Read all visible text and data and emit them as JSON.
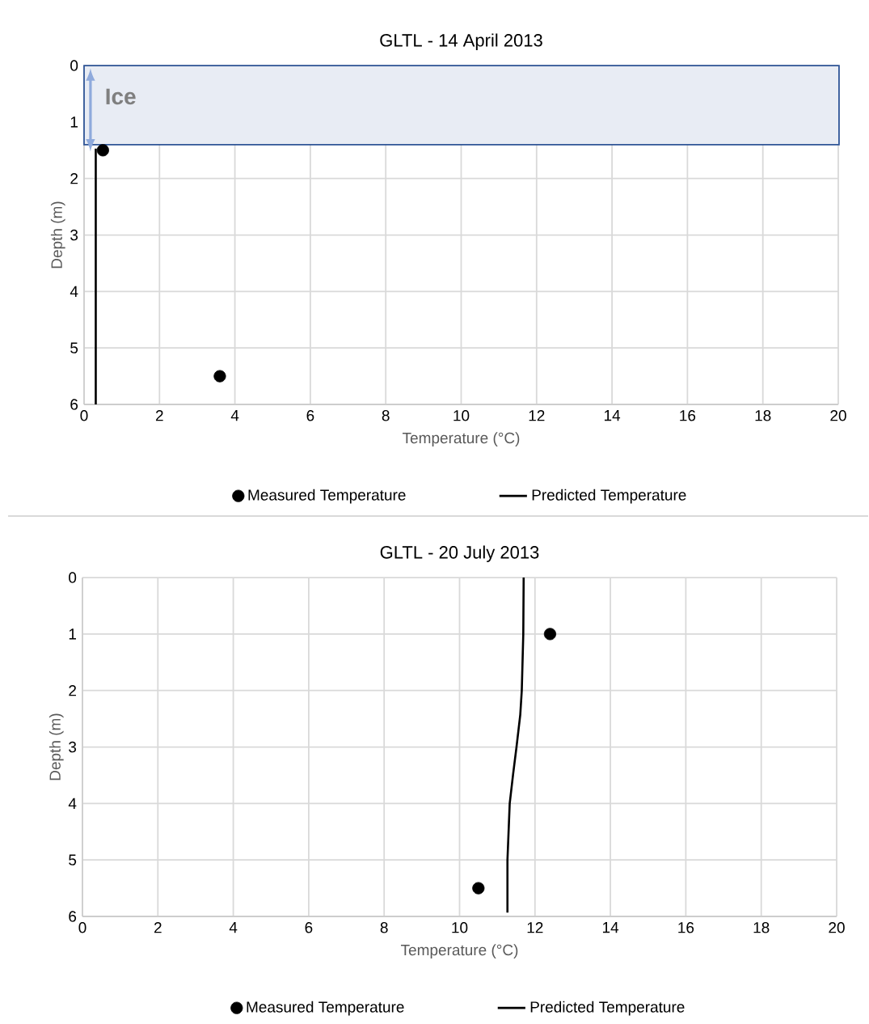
{
  "chart_data": [
    {
      "type": "scatter",
      "title": "GLTL - 14 April 2013",
      "xlabel": "Temperature (°C)",
      "ylabel": "Depth (m)",
      "xlim": [
        0,
        20
      ],
      "xticks": [
        0,
        2,
        4,
        6,
        8,
        10,
        12,
        14,
        16,
        18,
        20
      ],
      "ylim": [
        6,
        0
      ],
      "yticks": [
        0,
        1,
        2,
        3,
        4,
        5,
        6
      ],
      "grid": true,
      "legend": "bottom",
      "bands": [
        {
          "axis": "y",
          "from": 0,
          "to": 1.4,
          "label": "Ice",
          "color": "#2f5597"
        }
      ],
      "series": [
        {
          "name": "Measured Temperature",
          "color": "#000000",
          "marker": "circle",
          "x": [
            0.5,
            3.6
          ],
          "values": [
            1.5,
            5.5
          ]
        },
        {
          "name": "Predicted Temperature",
          "type": "line",
          "color": "#000000",
          "marker": "none",
          "line_style": "solid",
          "x": [
            0.31,
            0.31
          ],
          "values": [
            1.47,
            6
          ]
        }
      ]
    },
    {
      "type": "scatter",
      "title": "GLTL - 20 July 2013",
      "xlabel": "Temperature (°C)",
      "ylabel": "Depth (m)",
      "xlim": [
        0,
        20
      ],
      "xticks": [
        0,
        2,
        4,
        6,
        8,
        10,
        12,
        14,
        16,
        18,
        20
      ],
      "ylim": [
        6,
        0
      ],
      "yticks": [
        0,
        1,
        2,
        3,
        4,
        5,
        6
      ],
      "grid": true,
      "legend": "bottom",
      "series": [
        {
          "name": "Measured Temperature",
          "color": "#000000",
          "marker": "circle",
          "x": [
            12.4,
            10.5
          ],
          "values": [
            1,
            5.5
          ]
        },
        {
          "name": "Predicted Temperature",
          "type": "line",
          "color": "#000000",
          "marker": "none",
          "line_style": "solid",
          "x": [
            11.7,
            11.69,
            11.65,
            11.61,
            11.51,
            11.42,
            11.33,
            11.27,
            11.27
          ],
          "values": [
            0,
            1,
            2,
            2.43,
            3,
            3.48,
            4,
            5,
            5.93
          ]
        }
      ]
    }
  ]
}
